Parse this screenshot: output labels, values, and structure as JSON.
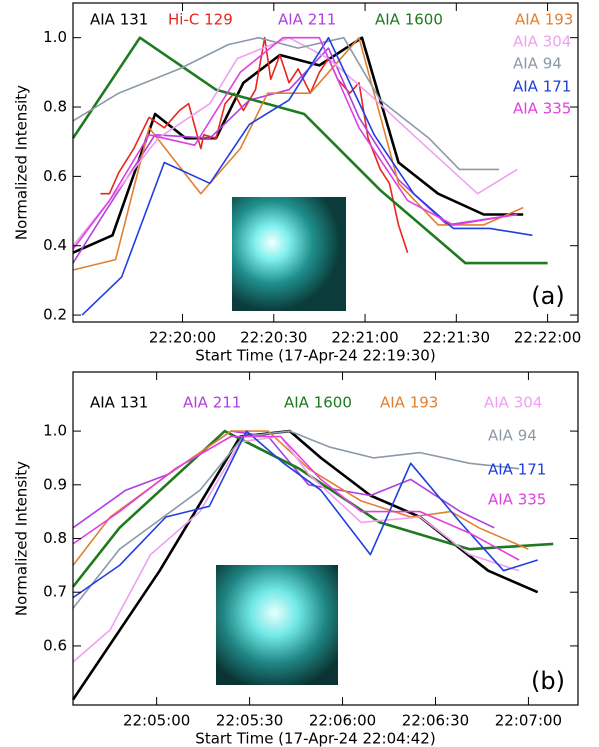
{
  "chart_data": [
    {
      "type": "line",
      "panel_label": "(a)",
      "xlabel": "Start Time (17-Apr-24 22:19:30)",
      "ylabel": "Normalized Intensity",
      "xlim": [
        -6,
        160
      ],
      "ylim": [
        0.18,
        1.1
      ],
      "xticks": [
        {
          "value": 30,
          "label": "22:20:00"
        },
        {
          "value": 60,
          "label": "22:20:30"
        },
        {
          "value": 90,
          "label": "22:21:00"
        },
        {
          "value": 120,
          "label": "22:21:30"
        },
        {
          "value": 150,
          "label": "22:22:00"
        }
      ],
      "yticks": [
        0.2,
        0.4,
        0.6,
        0.8,
        {
          "value": 1,
          "label": "1.0"
        }
      ],
      "series": [
        {
          "name": "AIA 131",
          "color": "#000000",
          "x": [
            -6,
            7,
            21,
            31,
            41,
            50,
            62,
            75,
            89,
            101,
            114,
            129,
            142
          ],
          "values": [
            0.38,
            0.43,
            0.78,
            0.71,
            0.71,
            0.87,
            0.95,
            0.92,
            1.0,
            0.64,
            0.55,
            0.49,
            0.49
          ]
        },
        {
          "name": "Hi-C 129",
          "color": "#e8261e",
          "x": [
            3,
            6,
            9,
            14,
            19,
            24,
            29,
            32,
            36,
            37,
            41,
            44,
            47,
            50,
            54,
            57,
            59,
            62,
            65,
            68,
            72,
            75,
            78,
            81,
            85,
            88,
            91,
            95,
            98,
            101,
            104
          ],
          "values": [
            0.55,
            0.55,
            0.61,
            0.68,
            0.77,
            0.74,
            0.79,
            0.81,
            0.68,
            0.72,
            0.71,
            0.81,
            0.84,
            0.79,
            0.85,
            1.0,
            0.88,
            0.95,
            0.87,
            0.91,
            0.84,
            0.9,
            0.94,
            0.88,
            0.84,
            0.87,
            0.71,
            0.62,
            0.58,
            0.46,
            0.38
          ]
        },
        {
          "name": "AIA 211",
          "color": "#b040e0",
          "x": [
            -6,
            4,
            21,
            39,
            52,
            65,
            78,
            88,
            101,
            117,
            140
          ],
          "values": [
            0.35,
            0.49,
            0.72,
            0.71,
            0.82,
            0.85,
            0.97,
            0.77,
            0.59,
            0.46,
            0.49
          ]
        },
        {
          "name": "AIA 1600",
          "color": "#1e7a1e",
          "x": [
            -6,
            16,
            41,
            70,
            95,
            123,
            150
          ],
          "values": [
            0.71,
            1.0,
            0.85,
            0.78,
            0.56,
            0.35,
            0.35
          ]
        },
        {
          "name": "AIA 193",
          "color": "#e08030",
          "x": [
            -6,
            8,
            19,
            36,
            49,
            58,
            72,
            88,
            101,
            114,
            129,
            142
          ],
          "values": [
            0.33,
            0.36,
            0.74,
            0.55,
            0.68,
            0.84,
            0.84,
            1.0,
            0.58,
            0.46,
            0.46,
            0.51
          ]
        },
        {
          "name": "AIA 304",
          "color": "#f0a0f0",
          "x": [
            -6,
            6,
            22,
            39,
            48,
            65,
            78,
            91,
            107,
            127,
            140
          ],
          "values": [
            0.4,
            0.53,
            0.71,
            0.81,
            0.94,
            1.0,
            0.94,
            0.84,
            0.71,
            0.55,
            0.62
          ]
        },
        {
          "name": "AIA 94",
          "color": "#8c9aa8",
          "x": [
            -6,
            9,
            29,
            45,
            55,
            68,
            83,
            95,
            111,
            121,
            134
          ],
          "values": [
            0.76,
            0.84,
            0.91,
            0.98,
            1.0,
            0.97,
            1.0,
            0.82,
            0.71,
            0.62,
            0.62
          ]
        },
        {
          "name": "AIA 171",
          "color": "#1f3fe0",
          "x": [
            -3,
            10,
            24,
            39,
            52,
            65,
            78,
            93,
            106,
            119,
            131,
            145
          ],
          "values": [
            0.2,
            0.31,
            0.64,
            0.58,
            0.75,
            0.82,
            1.0,
            0.72,
            0.55,
            0.45,
            0.45,
            0.43
          ]
        },
        {
          "name": "AIA 335",
          "color": "#e040e0",
          "x": [
            -6,
            6,
            19,
            34,
            49,
            63,
            75,
            88,
            104,
            119,
            140
          ],
          "values": [
            0.39,
            0.53,
            0.72,
            0.69,
            0.9,
            1.0,
            1.0,
            0.74,
            0.53,
            0.46,
            0.49
          ]
        }
      ]
    },
    {
      "type": "line",
      "panel_label": "(b)",
      "xlabel": "Start Time (17-Apr-24 22:04:42)",
      "ylabel": "Normalized Intensity",
      "xlim": [
        -9,
        154
      ],
      "ylim": [
        0.49,
        1.11
      ],
      "xticks": [
        {
          "value": 18,
          "label": "22:05:00"
        },
        {
          "value": 48,
          "label": "22:05:30"
        },
        {
          "value": 78,
          "label": "22:06:00"
        },
        {
          "value": 108,
          "label": "22:06:30"
        },
        {
          "value": 138,
          "label": "22:07:00"
        }
      ],
      "yticks": [
        0.6,
        0.7,
        0.8,
        0.9,
        {
          "value": 1,
          "label": "1.0"
        }
      ],
      "series": [
        {
          "name": "AIA 131",
          "color": "#000000",
          "x": [
            -9,
            19,
            45,
            61,
            71,
            87,
            103,
            125,
            141
          ],
          "values": [
            0.5,
            0.74,
            0.99,
            1.0,
            0.95,
            0.88,
            0.84,
            0.74,
            0.7
          ]
        },
        {
          "name": "AIA 211",
          "color": "#b040e0",
          "x": [
            -9,
            8,
            22,
            42,
            54,
            67,
            87,
            100,
            116,
            127
          ],
          "values": [
            0.82,
            0.89,
            0.92,
            1.0,
            0.99,
            0.9,
            0.88,
            0.91,
            0.85,
            0.82
          ]
        },
        {
          "name": "AIA 1600",
          "color": "#1e7a1e",
          "x": [
            -9,
            6,
            40,
            64,
            90,
            119,
            146
          ],
          "values": [
            0.71,
            0.82,
            1.0,
            0.93,
            0.83,
            0.78,
            0.79
          ]
        },
        {
          "name": "AIA 193",
          "color": "#e08030",
          "x": [
            -9,
            3,
            22,
            42,
            54,
            67,
            84,
            100,
            113,
            122,
            138
          ],
          "values": [
            0.75,
            0.84,
            0.92,
            1.0,
            1.0,
            0.93,
            0.87,
            0.84,
            0.85,
            0.82,
            0.78
          ]
        },
        {
          "name": "AIA 304",
          "color": "#f0a0f0",
          "x": [
            -9,
            3,
            16,
            32,
            45,
            58,
            67,
            84,
            103,
            119,
            135
          ],
          "values": [
            0.57,
            0.63,
            0.77,
            0.85,
            0.98,
            0.99,
            0.92,
            0.83,
            0.84,
            0.77,
            0.74
          ]
        },
        {
          "name": "AIA 94",
          "color": "#8c9aa8",
          "x": [
            -9,
            6,
            32,
            46,
            61,
            74,
            88,
            103,
            119,
            135
          ],
          "values": [
            0.67,
            0.78,
            0.89,
            0.99,
            1.0,
            0.97,
            0.95,
            0.96,
            0.94,
            0.93
          ]
        },
        {
          "name": "AIA 171",
          "color": "#1f3fe0",
          "x": [
            -9,
            6,
            21,
            35,
            47,
            59,
            71,
            87,
            100,
            116,
            130,
            141
          ],
          "values": [
            0.69,
            0.75,
            0.84,
            0.86,
            1.0,
            0.94,
            0.89,
            0.77,
            0.94,
            0.83,
            0.74,
            0.76
          ]
        },
        {
          "name": "AIA 335",
          "color": "#e040e0",
          "x": [
            -9,
            6,
            24,
            42,
            58,
            71,
            84,
            103,
            119,
            135
          ],
          "values": [
            0.79,
            0.85,
            0.93,
            0.99,
            0.99,
            0.91,
            0.85,
            0.85,
            0.81,
            0.76
          ]
        }
      ]
    }
  ]
}
